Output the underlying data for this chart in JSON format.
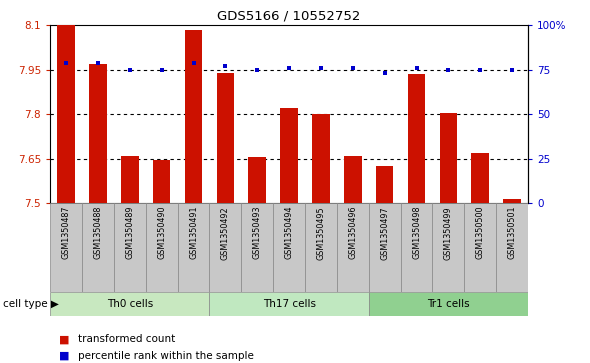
{
  "title": "GDS5166 / 10552752",
  "samples": [
    "GSM1350487",
    "GSM1350488",
    "GSM1350489",
    "GSM1350490",
    "GSM1350491",
    "GSM1350492",
    "GSM1350493",
    "GSM1350494",
    "GSM1350495",
    "GSM1350496",
    "GSM1350497",
    "GSM1350498",
    "GSM1350499",
    "GSM1350500",
    "GSM1350501"
  ],
  "bar_values": [
    8.1,
    7.97,
    7.66,
    7.645,
    8.085,
    7.94,
    7.655,
    7.82,
    7.8,
    7.66,
    7.625,
    7.935,
    7.805,
    7.67,
    7.515
  ],
  "percentile_values": [
    79,
    79,
    75,
    75,
    79,
    77,
    75,
    76,
    76,
    76,
    73,
    76,
    75,
    75,
    75
  ],
  "cell_types": [
    {
      "label": "Th0 cells",
      "start": 0,
      "end": 5,
      "color": "#c8e8c0"
    },
    {
      "label": "Th17 cells",
      "start": 5,
      "end": 10,
      "color": "#c0e8c0"
    },
    {
      "label": "Tr1 cells",
      "start": 10,
      "end": 15,
      "color": "#90d090"
    }
  ],
  "ymin": 7.5,
  "ymax": 8.1,
  "yticks": [
    7.5,
    7.65,
    7.8,
    7.95,
    8.1
  ],
  "ytick_labels": [
    "7.5",
    "7.65",
    "7.8",
    "7.95",
    "8.1"
  ],
  "right_yticks": [
    0,
    25,
    50,
    75,
    100
  ],
  "right_ytick_labels": [
    "0",
    "25",
    "50",
    "75",
    "100%"
  ],
  "bar_color": "#cc1100",
  "dot_color": "#0000cc",
  "legend_bar_label": "transformed count",
  "legend_dot_label": "percentile rank within the sample",
  "cell_type_label": "cell type",
  "tick_color": "#cc2200",
  "right_tick_color": "#0000cc",
  "xtick_bg_color": "#c8c8c8"
}
